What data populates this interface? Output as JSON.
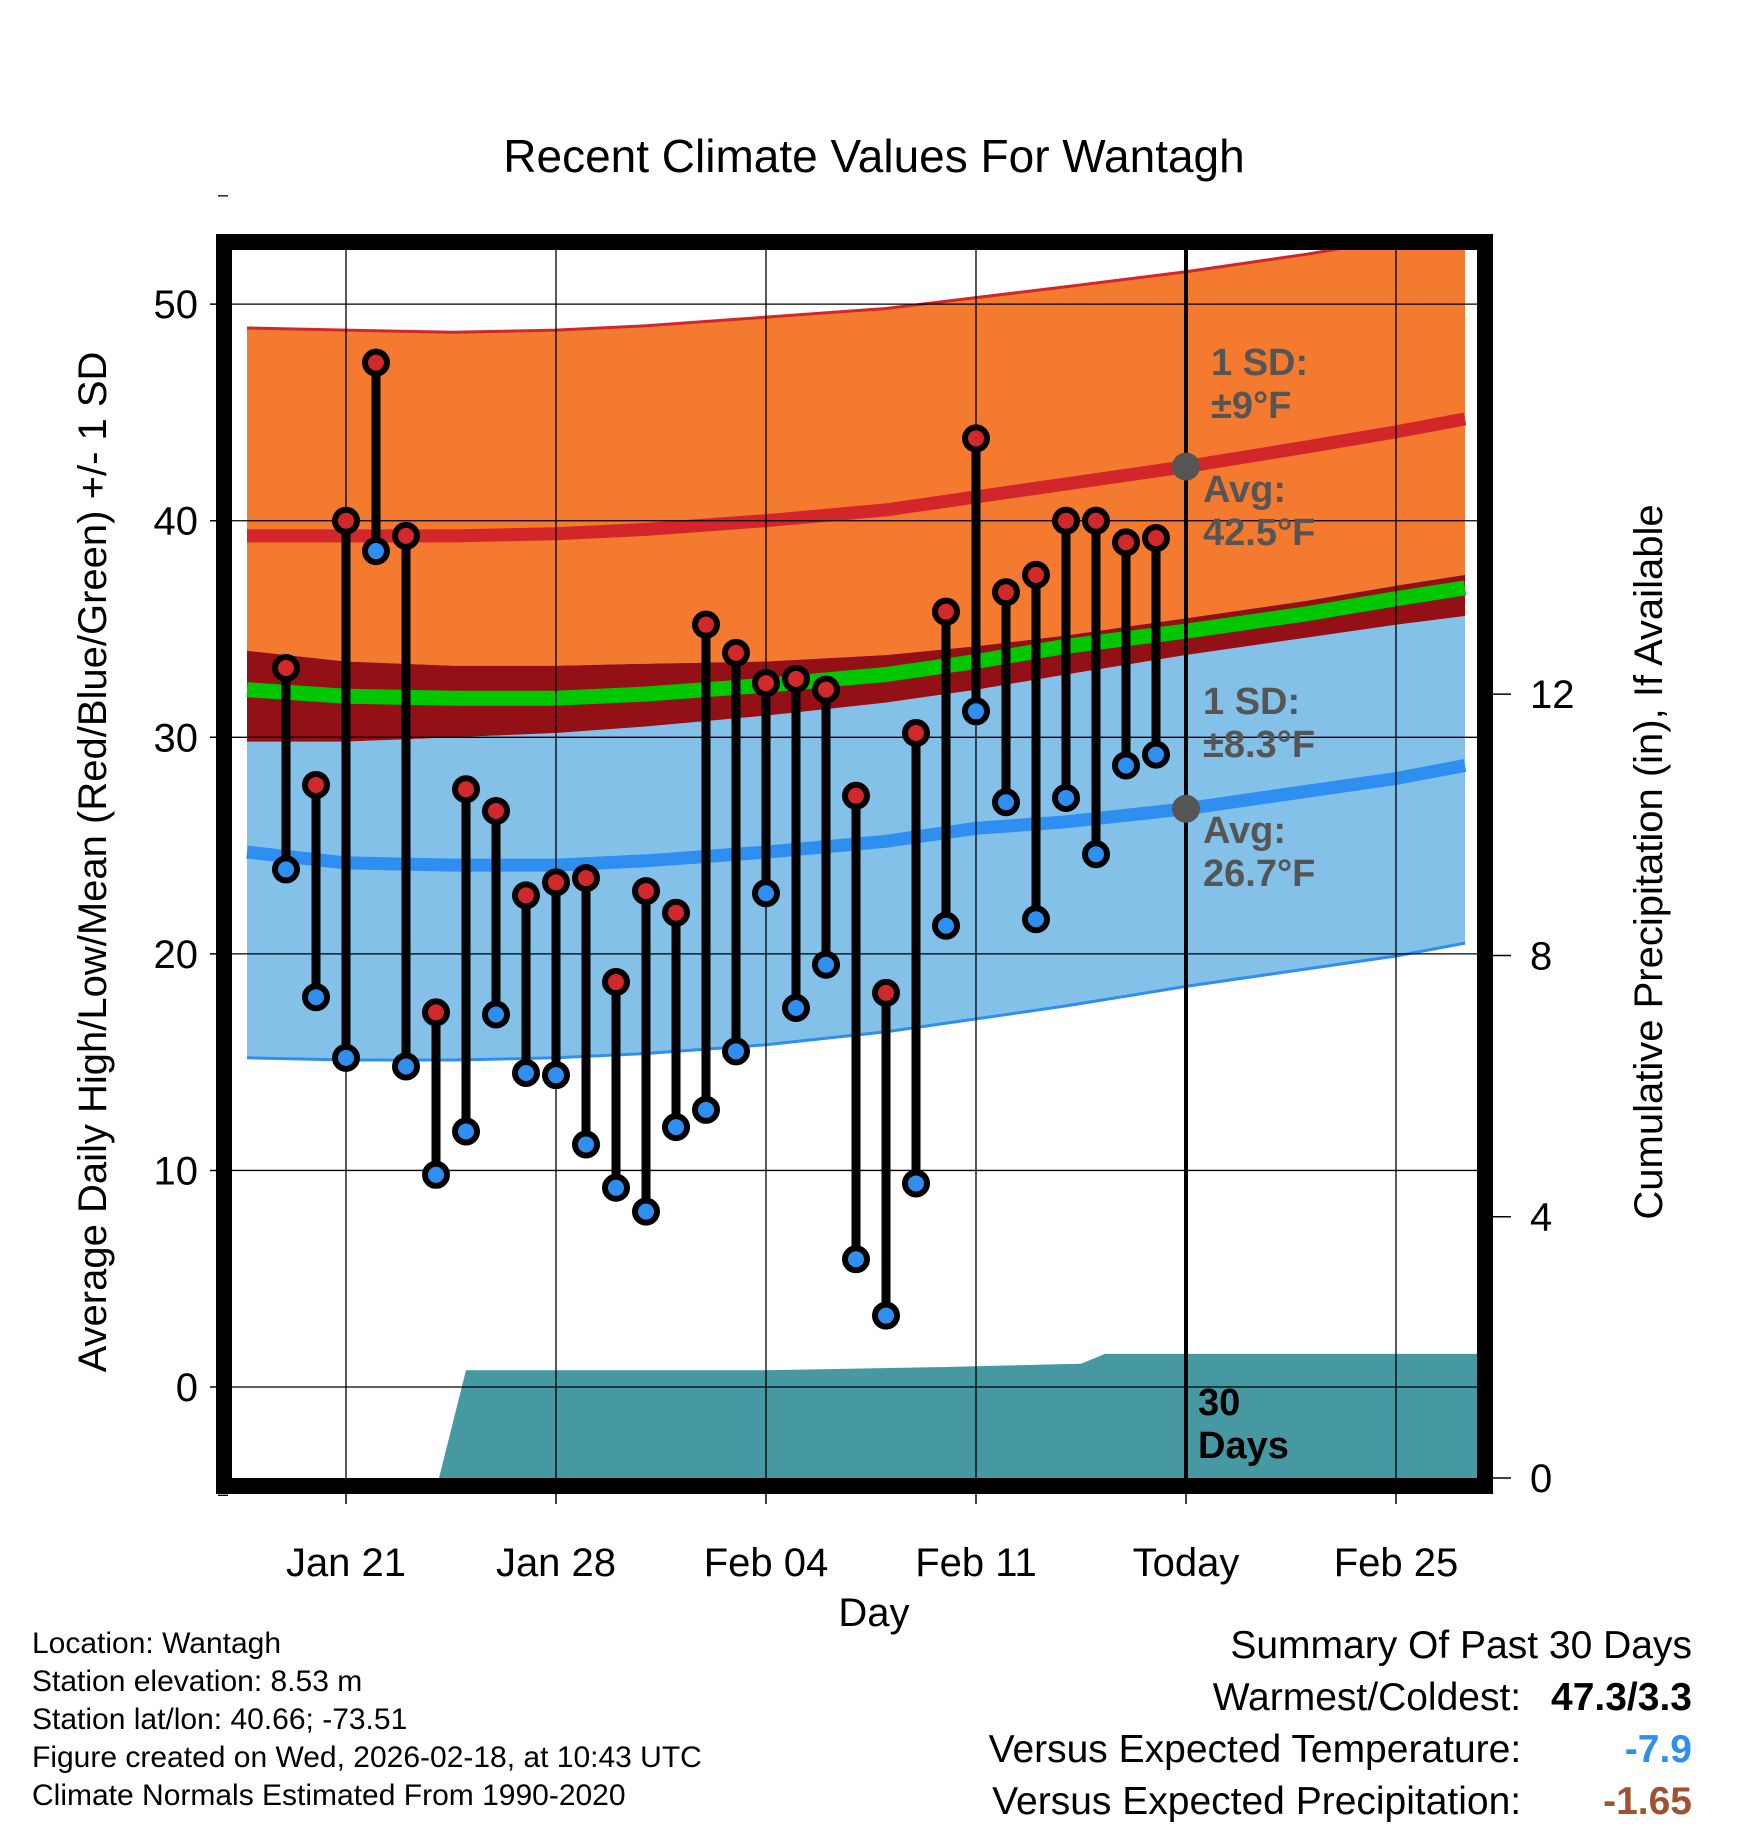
{
  "chart_data": {
    "type": "line",
    "title": "Recent Climate Values For Wantagh",
    "xlabel": "Day",
    "ylabel": "Average Daily High/Low/Mean (Red/Blue/Green) +/- 1 SD",
    "y2label": "Cumulative Precipitation (in), If Available",
    "ylim": [
      -4.2,
      52.5
    ],
    "y2lim": [
      0,
      18.8
    ],
    "xlim": [
      -3.8,
      37.7
    ],
    "yticks": [
      0,
      10,
      20,
      30,
      40,
      50
    ],
    "y2ticks": [
      0,
      4,
      8,
      12
    ],
    "xtick_day": [
      0,
      7,
      14,
      21,
      28,
      35
    ],
    "xtick_labels": [
      "Jan 21",
      "Jan 28",
      "Feb 04",
      "Feb 11",
      "Today",
      "Feb 25"
    ],
    "today_day": 28,
    "days": [
      -2,
      -1,
      0,
      1,
      2,
      3,
      4,
      5,
      6,
      7,
      8,
      9,
      10,
      11,
      12,
      13,
      14,
      15,
      16,
      17,
      18,
      19,
      20,
      21,
      22,
      23,
      24,
      25,
      26,
      27
    ],
    "highs": [
      33.2,
      27.8,
      40.0,
      47.3,
      39.3,
      17.3,
      27.6,
      26.6,
      22.7,
      23.3,
      23.5,
      18.7,
      22.9,
      21.9,
      35.2,
      33.9,
      32.5,
      32.7,
      32.2,
      27.3,
      18.2,
      30.2,
      35.8,
      43.8,
      36.7,
      37.5,
      40.0,
      40.0,
      39.0,
      39.2
    ],
    "lows": [
      23.9,
      18.0,
      15.2,
      38.6,
      14.8,
      9.8,
      11.8,
      17.2,
      14.5,
      14.4,
      11.2,
      9.2,
      8.1,
      12.0,
      12.8,
      15.5,
      22.8,
      17.5,
      19.5,
      5.9,
      3.3,
      9.4,
      21.3,
      31.2,
      27.0,
      21.6,
      27.2,
      24.6,
      28.7,
      29.2
    ],
    "normal_curves": {
      "day": [
        -3.3,
        0,
        3.6,
        7,
        10,
        14,
        18,
        21,
        24,
        28,
        32,
        35,
        37.3
      ],
      "high_avg": [
        39.3,
        39.3,
        39.3,
        39.4,
        39.6,
        40.0,
        40.5,
        41.1,
        41.7,
        42.5,
        43.4,
        44.1,
        44.7
      ],
      "high_upper": [
        48.9,
        48.8,
        48.7,
        48.8,
        49.0,
        49.4,
        49.8,
        50.3,
        50.8,
        51.5,
        52.3,
        53.0,
        53.6
      ],
      "high_lower": [
        34.0,
        33.5,
        33.3,
        33.3,
        33.4,
        33.5,
        33.8,
        34.2,
        34.7,
        35.5,
        36.3,
        37.0,
        37.5
      ],
      "low_avg": [
        24.7,
        24.2,
        24.1,
        24.1,
        24.3,
        24.7,
        25.2,
        25.8,
        26.1,
        26.7,
        27.5,
        28.1,
        28.7
      ],
      "low_upper": [
        29.8,
        29.8,
        30.0,
        30.2,
        30.5,
        31.0,
        31.6,
        32.2,
        32.9,
        33.8,
        34.6,
        35.2,
        35.6
      ],
      "low_lower": [
        15.2,
        15.1,
        15.1,
        15.2,
        15.4,
        15.8,
        16.4,
        17.0,
        17.6,
        18.5,
        19.3,
        19.9,
        20.5
      ],
      "mean_avg": [
        32.2,
        31.9,
        31.8,
        31.8,
        32.0,
        32.4,
        32.9,
        33.5,
        34.2,
        34.9,
        35.7,
        36.4,
        36.9
      ]
    },
    "precip": {
      "day": [
        0.1,
        3.1,
        4.0,
        14.0,
        20.0,
        24.5,
        25.3,
        37.7
      ],
      "inches": [
        0,
        0,
        1.65,
        1.65,
        1.7,
        1.75,
        1.9,
        1.9
      ]
    },
    "annotations": {
      "high_sd_label": "1 SD:",
      "high_sd_value": "±9°F",
      "high_avg_label": "Avg:",
      "high_avg_value": "42.5°F",
      "low_sd_label": "1 SD:",
      "low_sd_value": "±8.3°F",
      "low_avg_label": "Avg:",
      "low_avg_value": "26.7°F",
      "days_label_1": "30",
      "days_label_2": "Days"
    },
    "colors": {
      "high_band": "#f47a30",
      "high_line": "#d3262a",
      "low_band": "#84c1e8",
      "low_line": "#2e8ff0",
      "mean_band": "#921016",
      "mean_line": "#00c800",
      "precip": "#4698a2",
      "marker_high": "#d0282b",
      "marker_low": "#2e8ff0",
      "today_marker": "#555555"
    }
  },
  "info": {
    "location": "Location: Wantagh",
    "elevation": "Station elevation: 8.53 m",
    "latlon": "Station lat/lon: 40.66; -73.51",
    "created": "Figure created on Wed, 2026-02-18, at 10:43 UTC",
    "normals": "Climate Normals Estimated From 1990-2020"
  },
  "summary": {
    "title": "Summary Of Past 30 Days",
    "warm_cold_label": "Warmest/Coldest:",
    "warm_cold_value": "47.3/3.3",
    "temp_label": "Versus Expected Temperature:",
    "temp_value": "-7.9",
    "temp_color": "#2e8ff0",
    "precip_label": "Versus Expected Precipitation:",
    "precip_value": "-1.65",
    "precip_color": "#a0522d"
  }
}
